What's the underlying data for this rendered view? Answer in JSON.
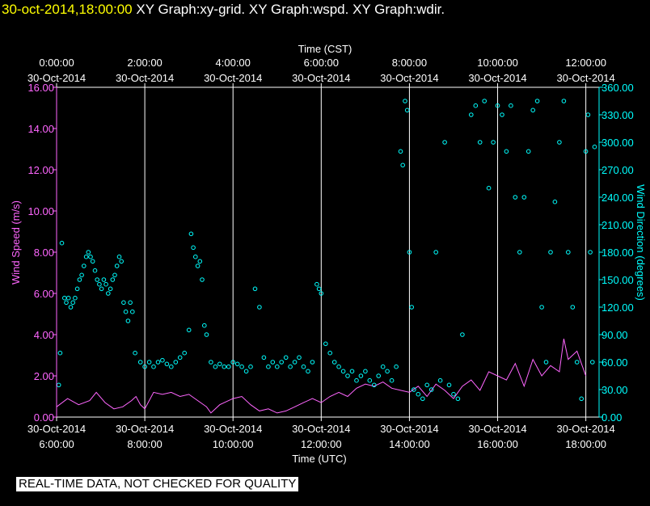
{
  "header": {
    "timestamp": "30-oct-2014,18:00:00",
    "graph_titles": "XY Graph:xy-grid.  XY Graph:wspd.  XY Graph:wdir."
  },
  "notice": "REAL-TIME DATA, NOT CHECKED FOR QUALITY",
  "colors": {
    "wspd": "#ff66ff",
    "wdir": "#00ffff",
    "axis_left": "#ff66ff",
    "axis_right": "#00ffff",
    "grid": "#ffffff",
    "text": "#ffffff"
  },
  "chart_data": {
    "type": "scatter",
    "top_axis": {
      "label": "Time (CST)",
      "ticks": [
        {
          "t": 0,
          "time": "0:00:00",
          "date": "30-Oct-2014"
        },
        {
          "t": 2,
          "time": "2:00:00",
          "date": "30-Oct-2014"
        },
        {
          "t": 4,
          "time": "4:00:00",
          "date": "30-Oct-2014"
        },
        {
          "t": 6,
          "time": "6:00:00",
          "date": "30-Oct-2014"
        },
        {
          "t": 8,
          "time": "8:00:00",
          "date": "30-Oct-2014"
        },
        {
          "t": 10,
          "time": "10:00:00",
          "date": "30-Oct-2014"
        },
        {
          "t": 12,
          "time": "12:00:00",
          "date": "30-Oct-2014"
        }
      ]
    },
    "bottom_axis": {
      "label": "Time (UTC)",
      "ticks": [
        {
          "t": 0,
          "date": "30-Oct-2014",
          "time": "6:00:00"
        },
        {
          "t": 2,
          "date": "30-Oct-2014",
          "time": "8:00:00"
        },
        {
          "t": 4,
          "date": "30-Oct-2014",
          "time": "10:00:00"
        },
        {
          "t": 6,
          "date": "30-Oct-2014",
          "time": "12:00:00"
        },
        {
          "t": 8,
          "date": "30-Oct-2014",
          "time": "14:00:00"
        },
        {
          "t": 10,
          "date": "30-Oct-2014",
          "time": "16:00:00"
        },
        {
          "t": 12,
          "date": "30-Oct-2014",
          "time": "18:00:00"
        }
      ]
    },
    "xlim": [
      0,
      12.3
    ],
    "left_axis": {
      "label": "Wind Speed (m/s)",
      "ylim": [
        0,
        16
      ],
      "ticks": [
        "0.00",
        "2.00",
        "4.00",
        "6.00",
        "8.00",
        "10.00",
        "12.00",
        "14.00",
        "16.00"
      ]
    },
    "right_axis": {
      "label": "Wind Direction (degrees)",
      "ylim": [
        0,
        360
      ],
      "ticks": [
        "0.00",
        "30.00",
        "60.00",
        "90.00",
        "120.00",
        "150.00",
        "180.00",
        "210.00",
        "240.00",
        "270.00",
        "300.00",
        "330.00",
        "360.00"
      ]
    },
    "grid": "vertical lines at each 2-hour tick",
    "series": [
      {
        "name": "Wind Speed (m/s)",
        "style": "line",
        "axis": "left",
        "points": [
          [
            0.0,
            0.5
          ],
          [
            0.25,
            0.9
          ],
          [
            0.5,
            0.6
          ],
          [
            0.75,
            0.8
          ],
          [
            0.9,
            1.2
          ],
          [
            1.1,
            0.7
          ],
          [
            1.3,
            0.4
          ],
          [
            1.5,
            0.5
          ],
          [
            1.7,
            0.8
          ],
          [
            1.8,
            1.0
          ],
          [
            1.9,
            0.6
          ],
          [
            2.0,
            0.4
          ],
          [
            2.2,
            1.2
          ],
          [
            2.4,
            1.1
          ],
          [
            2.6,
            1.2
          ],
          [
            2.8,
            1.0
          ],
          [
            3.0,
            1.1
          ],
          [
            3.2,
            0.8
          ],
          [
            3.4,
            0.5
          ],
          [
            3.5,
            0.2
          ],
          [
            3.7,
            0.6
          ],
          [
            3.9,
            0.8
          ],
          [
            4.0,
            0.9
          ],
          [
            4.2,
            1.0
          ],
          [
            4.4,
            0.6
          ],
          [
            4.6,
            0.3
          ],
          [
            4.8,
            0.4
          ],
          [
            5.0,
            0.2
          ],
          [
            5.2,
            0.3
          ],
          [
            5.4,
            0.5
          ],
          [
            5.6,
            0.7
          ],
          [
            5.8,
            0.9
          ],
          [
            6.0,
            0.7
          ],
          [
            6.2,
            1.0
          ],
          [
            6.4,
            1.2
          ],
          [
            6.6,
            1.0
          ],
          [
            6.8,
            1.4
          ],
          [
            7.0,
            1.6
          ],
          [
            7.2,
            1.5
          ],
          [
            7.4,
            1.7
          ],
          [
            7.6,
            1.4
          ],
          [
            7.8,
            1.3
          ],
          [
            8.0,
            1.2
          ],
          [
            8.2,
            1.5
          ],
          [
            8.4,
            1.0
          ],
          [
            8.6,
            1.6
          ],
          [
            8.8,
            1.3
          ],
          [
            9.0,
            0.9
          ],
          [
            9.2,
            1.5
          ],
          [
            9.4,
            1.8
          ],
          [
            9.6,
            1.3
          ],
          [
            9.8,
            2.2
          ],
          [
            10.0,
            2.0
          ],
          [
            10.2,
            1.8
          ],
          [
            10.4,
            2.6
          ],
          [
            10.6,
            1.5
          ],
          [
            10.8,
            2.8
          ],
          [
            11.0,
            2.0
          ],
          [
            11.2,
            2.5
          ],
          [
            11.4,
            2.2
          ],
          [
            11.5,
            3.8
          ],
          [
            11.6,
            2.8
          ],
          [
            11.8,
            3.2
          ],
          [
            12.0,
            2.0
          ]
        ]
      },
      {
        "name": "Wind Direction (degrees)",
        "style": "scatter",
        "axis": "right",
        "points": [
          [
            0.05,
            35
          ],
          [
            0.08,
            70
          ],
          [
            0.12,
            190
          ],
          [
            0.18,
            130
          ],
          [
            0.22,
            125
          ],
          [
            0.27,
            130
          ],
          [
            0.32,
            120
          ],
          [
            0.37,
            125
          ],
          [
            0.42,
            130
          ],
          [
            0.47,
            140
          ],
          [
            0.52,
            150
          ],
          [
            0.57,
            155
          ],
          [
            0.62,
            165
          ],
          [
            0.67,
            175
          ],
          [
            0.72,
            180
          ],
          [
            0.77,
            175
          ],
          [
            0.82,
            170
          ],
          [
            0.87,
            160
          ],
          [
            0.92,
            150
          ],
          [
            0.97,
            145
          ],
          [
            1.02,
            140
          ],
          [
            1.07,
            150
          ],
          [
            1.12,
            145
          ],
          [
            1.17,
            135
          ],
          [
            1.22,
            140
          ],
          [
            1.27,
            150
          ],
          [
            1.32,
            155
          ],
          [
            1.37,
            165
          ],
          [
            1.42,
            175
          ],
          [
            1.47,
            170
          ],
          [
            1.52,
            125
          ],
          [
            1.57,
            115
          ],
          [
            1.62,
            105
          ],
          [
            1.67,
            125
          ],
          [
            1.72,
            115
          ],
          [
            1.78,
            70
          ],
          [
            1.9,
            60
          ],
          [
            2.0,
            55
          ],
          [
            2.1,
            60
          ],
          [
            2.2,
            55
          ],
          [
            2.3,
            60
          ],
          [
            2.4,
            62
          ],
          [
            2.5,
            58
          ],
          [
            2.6,
            55
          ],
          [
            2.7,
            60
          ],
          [
            2.8,
            65
          ],
          [
            2.9,
            70
          ],
          [
            3.0,
            95
          ],
          [
            3.05,
            200
          ],
          [
            3.1,
            185
          ],
          [
            3.15,
            175
          ],
          [
            3.2,
            165
          ],
          [
            3.25,
            170
          ],
          [
            3.3,
            150
          ],
          [
            3.35,
            100
          ],
          [
            3.4,
            90
          ],
          [
            3.5,
            60
          ],
          [
            3.6,
            55
          ],
          [
            3.7,
            58
          ],
          [
            3.8,
            55
          ],
          [
            3.9,
            55
          ],
          [
            4.0,
            60
          ],
          [
            4.1,
            58
          ],
          [
            4.2,
            55
          ],
          [
            4.3,
            50
          ],
          [
            4.4,
            55
          ],
          [
            4.5,
            140
          ],
          [
            4.6,
            120
          ],
          [
            4.7,
            65
          ],
          [
            4.8,
            55
          ],
          [
            4.9,
            60
          ],
          [
            5.0,
            55
          ],
          [
            5.1,
            60
          ],
          [
            5.2,
            65
          ],
          [
            5.3,
            55
          ],
          [
            5.4,
            60
          ],
          [
            5.5,
            65
          ],
          [
            5.6,
            55
          ],
          [
            5.7,
            50
          ],
          [
            5.8,
            60
          ],
          [
            5.9,
            145
          ],
          [
            5.95,
            140
          ],
          [
            6.0,
            135
          ],
          [
            6.1,
            80
          ],
          [
            6.2,
            70
          ],
          [
            6.3,
            60
          ],
          [
            6.4,
            55
          ],
          [
            6.5,
            50
          ],
          [
            6.6,
            45
          ],
          [
            6.7,
            50
          ],
          [
            6.8,
            40
          ],
          [
            6.9,
            45
          ],
          [
            7.0,
            50
          ],
          [
            7.1,
            40
          ],
          [
            7.2,
            35
          ],
          [
            7.3,
            45
          ],
          [
            7.4,
            55
          ],
          [
            7.5,
            50
          ],
          [
            7.6,
            40
          ],
          [
            7.7,
            55
          ],
          [
            7.8,
            290
          ],
          [
            7.85,
            275
          ],
          [
            7.9,
            345
          ],
          [
            7.95,
            335
          ],
          [
            8.0,
            180
          ],
          [
            8.05,
            120
          ],
          [
            8.1,
            30
          ],
          [
            8.2,
            25
          ],
          [
            8.3,
            20
          ],
          [
            8.4,
            35
          ],
          [
            8.5,
            30
          ],
          [
            8.6,
            180
          ],
          [
            8.7,
            40
          ],
          [
            8.8,
            300
          ],
          [
            8.9,
            35
          ],
          [
            9.0,
            25
          ],
          [
            9.1,
            20
          ],
          [
            9.2,
            90
          ],
          [
            9.4,
            330
          ],
          [
            9.5,
            340
          ],
          [
            9.6,
            300
          ],
          [
            9.7,
            345
          ],
          [
            9.8,
            250
          ],
          [
            9.9,
            300
          ],
          [
            10.0,
            340
          ],
          [
            10.1,
            330
          ],
          [
            10.2,
            290
          ],
          [
            10.3,
            340
          ],
          [
            10.4,
            240
          ],
          [
            10.5,
            180
          ],
          [
            10.6,
            240
          ],
          [
            10.7,
            290
          ],
          [
            10.8,
            335
          ],
          [
            10.9,
            345
          ],
          [
            11.0,
            120
          ],
          [
            11.1,
            60
          ],
          [
            11.2,
            180
          ],
          [
            11.3,
            235
          ],
          [
            11.4,
            300
          ],
          [
            11.5,
            345
          ],
          [
            11.6,
            180
          ],
          [
            11.7,
            120
          ],
          [
            11.8,
            60
          ],
          [
            11.9,
            20
          ],
          [
            12.0,
            290
          ],
          [
            12.05,
            330
          ],
          [
            12.1,
            180
          ],
          [
            12.15,
            60
          ],
          [
            12.2,
            295
          ]
        ]
      }
    ]
  }
}
